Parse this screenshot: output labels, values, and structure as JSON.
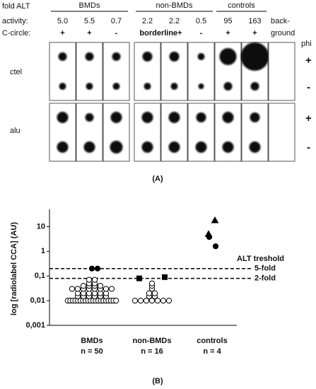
{
  "panel_a": {
    "header": "fold ALT",
    "groups": [
      "BMDs",
      "non-BMDs",
      "controls"
    ],
    "row_labels": [
      "activity:",
      "C-circle:"
    ],
    "activity": [
      "5.0",
      "5.5",
      "0.7",
      "2.2",
      "2.2",
      "0.5",
      "95",
      "163",
      "back-",
      "ground"
    ],
    "c_circle": [
      "+",
      "+",
      "-",
      "borderline+",
      "-",
      "+",
      "+"
    ],
    "blots": [
      "ctel",
      "alu"
    ],
    "phi": "phi",
    "signs": [
      "+",
      "-"
    ],
    "caption": "(A)"
  },
  "chart_data": {
    "type": "scatter",
    "y_label": "log [radiolabel CCA] (AU)",
    "categories": [
      "BMDs",
      "non-BMDs",
      "controls"
    ],
    "category_notes": [
      "n = 50",
      "n = 16",
      "n = 4"
    ],
    "log_y": true,
    "ylim": [
      0.001,
      50
    ],
    "yticks": [
      {
        "value": 0.001,
        "label": "0,001"
      },
      {
        "value": 0.01,
        "label": "0,01"
      },
      {
        "value": 0.1,
        "label": "0,1"
      },
      1,
      10
    ],
    "threshold_title": "ALT treshold",
    "thresholds": [
      {
        "value": 0.2,
        "label": "5-fold"
      },
      {
        "value": 0.08,
        "label": "2-fold"
      }
    ],
    "series": [
      {
        "category": 0,
        "marker": "circle",
        "filled": false,
        "color": "#000",
        "values": [
          0.01,
          0.01,
          0.01,
          0.01,
          0.01,
          0.01,
          0.01,
          0.01,
          0.01,
          0.01,
          0.01,
          0.01,
          0.01,
          0.01,
          0.01,
          0.01,
          0.01,
          0.01,
          0.01,
          0.01,
          0.015,
          0.015,
          0.015,
          0.015,
          0.015,
          0.015,
          0.02,
          0.02,
          0.02,
          0.02,
          0.02,
          0.02,
          0.03,
          0.03,
          0.03,
          0.03,
          0.03,
          0.03,
          0.03,
          0.03,
          0.04,
          0.04,
          0.04,
          0.04,
          0.05,
          0.05,
          0.07,
          0.07
        ]
      },
      {
        "category": 0,
        "marker": "circle",
        "filled": true,
        "color": "#000",
        "values": [
          0.2,
          0.2
        ]
      },
      {
        "category": 1,
        "marker": "circle",
        "filled": false,
        "color": "#000",
        "values": [
          0.01,
          0.01,
          0.01,
          0.01,
          0.01,
          0.01,
          0.01,
          0.015,
          0.015,
          0.02,
          0.02,
          0.03,
          0.04,
          0.05
        ]
      },
      {
        "category": 1,
        "marker": "square",
        "filled": true,
        "color": "#000",
        "values": [
          0.08,
          0.09
        ]
      },
      {
        "category": 2,
        "marker": "triangle",
        "filled": true,
        "color": "#000",
        "values": [
          18,
          5
        ]
      },
      {
        "category": 2,
        "marker": "circle",
        "filled": true,
        "color": "#000",
        "values": [
          3.8,
          1.6
        ]
      }
    ],
    "caption": "(B)"
  }
}
